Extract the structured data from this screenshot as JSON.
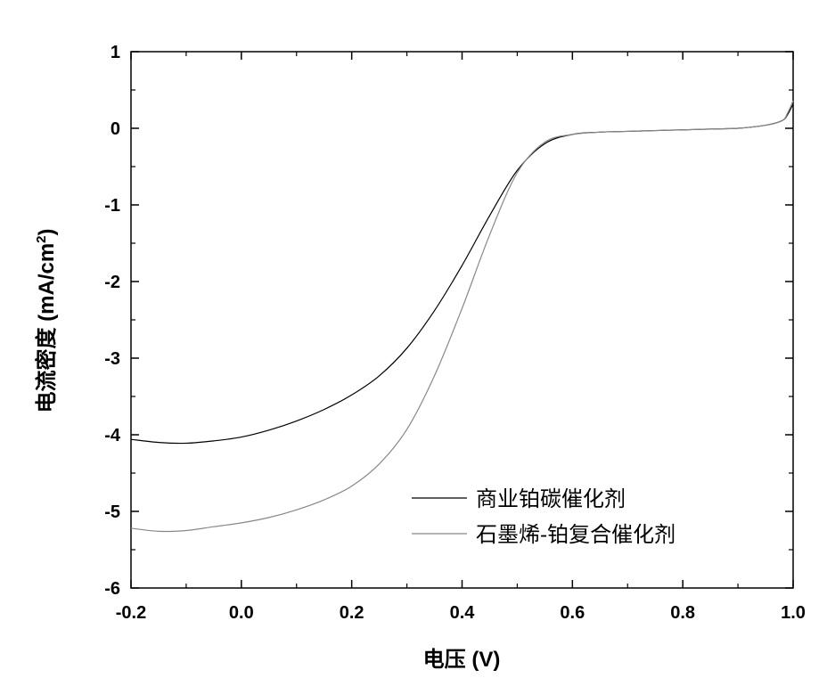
{
  "chart_data": {
    "type": "line",
    "xlabel": "电压 (V)",
    "ylabel": "电流密度 (mA/cm²)",
    "ylabel_parts": {
      "main": "电流密度 (mA/cm",
      "sup": "2",
      "close": ")"
    },
    "xlim": [
      -0.2,
      1.0
    ],
    "ylim": [
      -6,
      1
    ],
    "xticks": [
      -0.2,
      0.0,
      0.2,
      0.4,
      0.6,
      0.8,
      1.0
    ],
    "xtick_labels": [
      "-0.2",
      "0.0",
      "0.2",
      "0.4",
      "0.6",
      "0.8",
      "1.0"
    ],
    "yticks": [
      1,
      0,
      -1,
      -2,
      -3,
      -4,
      -5,
      -6
    ],
    "ytick_labels": [
      "1",
      "0",
      "-1",
      "-2",
      "-3",
      "-4",
      "-5",
      "-6"
    ],
    "grid": false,
    "legend_position": "lower-right",
    "series": [
      {
        "name": "商业铂碳催化剂",
        "color": "#000000",
        "x": [
          -0.2,
          -0.15,
          -0.1,
          -0.05,
          0.0,
          0.05,
          0.1,
          0.15,
          0.2,
          0.25,
          0.3,
          0.35,
          0.4,
          0.45,
          0.5,
          0.55,
          0.6,
          0.65,
          0.7,
          0.75,
          0.8,
          0.85,
          0.9,
          0.95,
          0.98,
          0.99,
          1.0
        ],
        "y": [
          -4.06,
          -4.1,
          -4.11,
          -4.08,
          -4.03,
          -3.94,
          -3.82,
          -3.67,
          -3.48,
          -3.23,
          -2.87,
          -2.38,
          -1.79,
          -1.14,
          -0.55,
          -0.2,
          -0.08,
          -0.05,
          -0.04,
          -0.03,
          -0.02,
          -0.01,
          0.0,
          0.04,
          0.1,
          0.18,
          0.32
        ]
      },
      {
        "name": "石墨烯-铂复合催化剂",
        "color": "#888888",
        "x": [
          -0.2,
          -0.15,
          -0.1,
          -0.05,
          0.0,
          0.05,
          0.1,
          0.15,
          0.2,
          0.25,
          0.3,
          0.35,
          0.4,
          0.45,
          0.5,
          0.55,
          0.6,
          0.65,
          0.7,
          0.75,
          0.8,
          0.85,
          0.9,
          0.95,
          0.98,
          0.99,
          1.0
        ],
        "y": [
          -5.22,
          -5.26,
          -5.25,
          -5.2,
          -5.15,
          -5.08,
          -4.98,
          -4.85,
          -4.67,
          -4.38,
          -3.93,
          -3.23,
          -2.35,
          -1.39,
          -0.58,
          -0.18,
          -0.08,
          -0.05,
          -0.04,
          -0.03,
          -0.02,
          -0.01,
          0.0,
          0.04,
          0.1,
          0.2,
          0.36
        ]
      }
    ]
  }
}
